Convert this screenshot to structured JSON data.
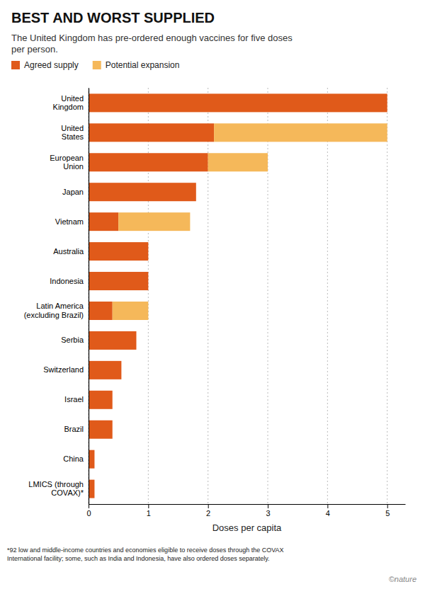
{
  "chart_data": {
    "type": "bar",
    "orientation": "horizontal",
    "stacked": true,
    "title": "BEST AND WORST SUPPLIED",
    "subtitle": "The United Kingdom has pre-ordered enough vaccines for five doses\nper person.",
    "xlabel": "Doses per capita",
    "categories": [
      "United\nKingdom",
      "United\nStates",
      "European\nUnion",
      "Japan",
      "Vietnam",
      "Australia",
      "Indonesia",
      "Latin America\n(excluding Brazil)",
      "Serbia",
      "Switzerland",
      "Israel",
      "Brazil",
      "China",
      "LMICS (through\nCOVAX)*"
    ],
    "series": [
      {
        "name": "Agreed supply",
        "color": "#e05a1a",
        "values": [
          5.0,
          2.1,
          2.0,
          1.8,
          0.5,
          1.0,
          1.0,
          0.4,
          0.8,
          0.55,
          0.4,
          0.4,
          0.1,
          0.1
        ]
      },
      {
        "name": "Potential expansion",
        "color": "#f5b85a",
        "values": [
          0.0,
          2.9,
          1.0,
          0.0,
          1.2,
          0.0,
          0.0,
          0.6,
          0.0,
          0.0,
          0.0,
          0.0,
          0.0,
          0.0
        ]
      }
    ],
    "xlim": [
      0,
      5.3
    ],
    "xticks": [
      0,
      1,
      2,
      3,
      4,
      5
    ],
    "grid": true,
    "legend": "upper left",
    "footnote": "*92 low and middle-income countries and economies eligible to receive doses through the COVAX\nInternational facility; some, such as India and Indonesia, have also ordered doses separately.",
    "annotations": [
      "©nature"
    ]
  }
}
